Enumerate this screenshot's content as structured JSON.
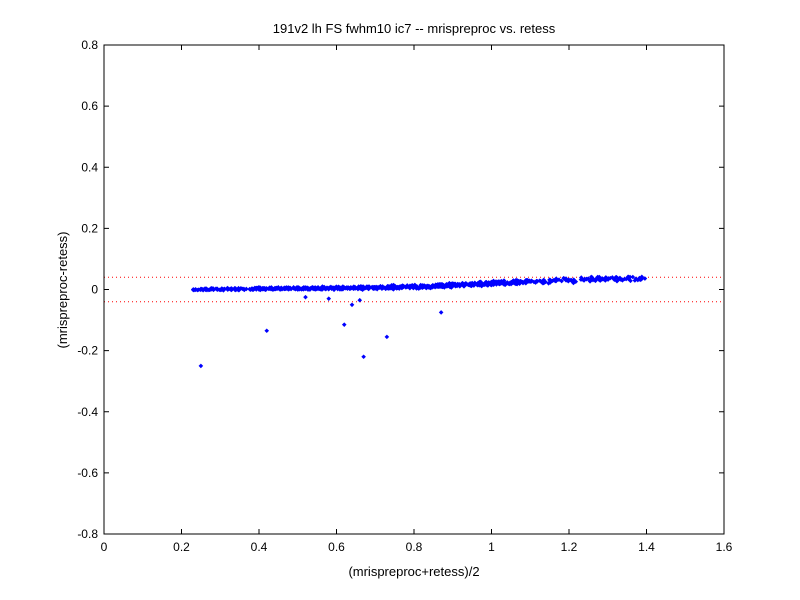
{
  "chart_data": {
    "type": "scatter",
    "title": "191v2 lh FS fwhm10 ic7 -- mrispreproc vs. retess",
    "xlabel": "(mrispreproc+retess)/2",
    "ylabel": "(mrispreproc-retess)",
    "xlim": [
      0,
      1.6
    ],
    "ylim": [
      -0.8,
      0.8
    ],
    "xticks": [
      "0",
      "0.2",
      "0.4",
      "0.6",
      "0.8",
      "1",
      "1.2",
      "1.4",
      "1.6"
    ],
    "yticks": [
      "-0.8",
      "-0.6",
      "-0.4",
      "-0.2",
      "0",
      "0.2",
      "0.4",
      "0.6",
      "0.8"
    ],
    "grid": false,
    "marker_color": "#0000ff",
    "reference_line_color": "#ff0000",
    "reference_lines_y": [
      0.04,
      -0.04
    ],
    "outliers": [
      {
        "x": 0.25,
        "y": -0.25
      },
      {
        "x": 0.42,
        "y": -0.135
      },
      {
        "x": 0.67,
        "y": -0.22
      },
      {
        "x": 0.62,
        "y": -0.115
      },
      {
        "x": 0.73,
        "y": -0.155
      },
      {
        "x": 0.87,
        "y": -0.075
      },
      {
        "x": 0.64,
        "y": -0.05
      },
      {
        "x": 0.66,
        "y": -0.035
      },
      {
        "x": 0.58,
        "y": -0.03
      },
      {
        "x": 0.52,
        "y": -0.025
      }
    ],
    "main_cloud": {
      "x_range": [
        0.23,
        1.4
      ],
      "approx_count": 900,
      "y_trend": [
        {
          "x": 0.25,
          "y": 0.0
        },
        {
          "x": 0.8,
          "y": 0.008
        },
        {
          "x": 1.0,
          "y": 0.02
        },
        {
          "x": 1.3,
          "y": 0.035
        }
      ],
      "y_spread": 0.012
    }
  }
}
